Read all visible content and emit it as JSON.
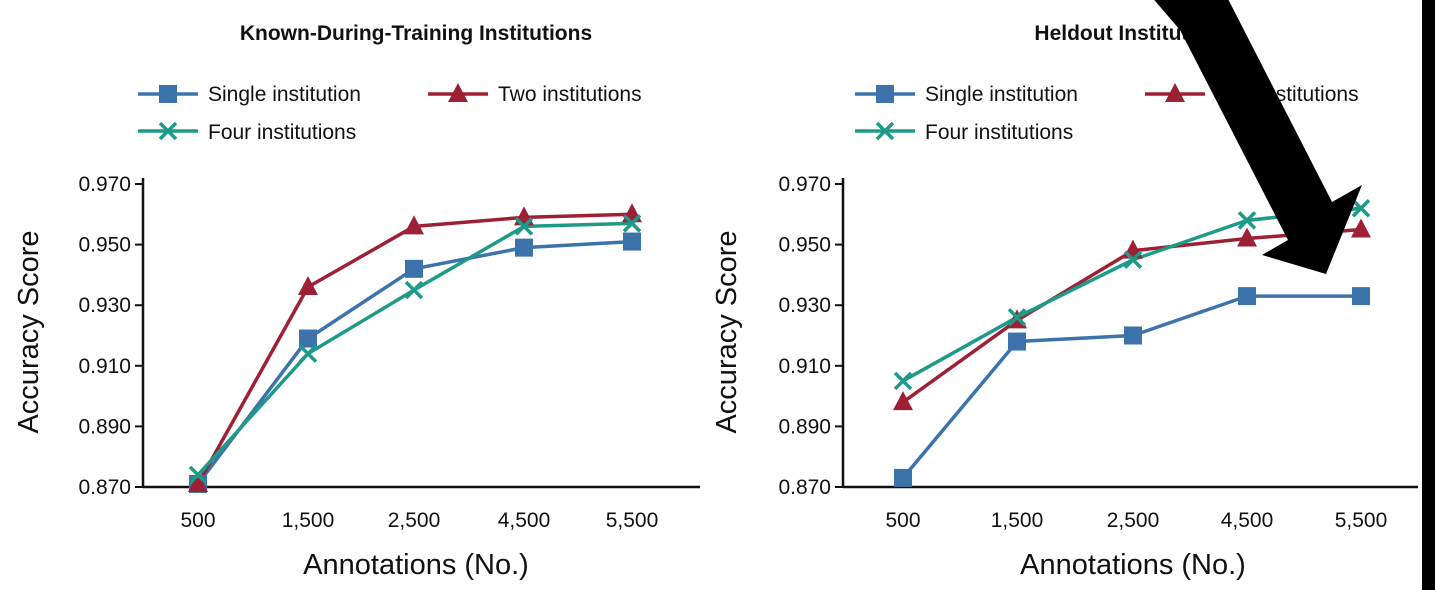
{
  "colors": {
    "single": "#3b73aa",
    "two": "#9e2035",
    "four": "#1e9a88",
    "axis": "#111111",
    "arrow": "#000000"
  },
  "legend": {
    "single_label": "Single institution",
    "two_label": "Two institutions",
    "four_label": "Four institutions"
  },
  "chart_data": [
    {
      "type": "line",
      "title": "Known-During-Training Institutions",
      "xlabel": "Annotations (No.)",
      "ylabel": "Accuracy Score",
      "categories": [
        "500",
        "1,500",
        "2,500",
        "4,500",
        "5,500"
      ],
      "ylim": [
        0.87,
        0.97
      ],
      "yticks": [
        "0.870",
        "0.890",
        "0.910",
        "0.930",
        "0.950",
        "0.970"
      ],
      "legend_position": "top",
      "series": [
        {
          "name": "Single institution",
          "marker": "square",
          "values": [
            0.871,
            0.919,
            0.942,
            0.949,
            0.951
          ]
        },
        {
          "name": "Two institutions",
          "marker": "triangle",
          "values": [
            0.871,
            0.936,
            0.956,
            0.959,
            0.96
          ]
        },
        {
          "name": "Four institutions",
          "marker": "x",
          "values": [
            0.874,
            0.914,
            0.935,
            0.956,
            0.957
          ]
        }
      ]
    },
    {
      "type": "line",
      "title": "Heldout Institutions",
      "xlabel": "Annotations (No.)",
      "ylabel": "Accuracy Score",
      "categories": [
        "500",
        "1,500",
        "2,500",
        "4,500",
        "5,500"
      ],
      "ylim": [
        0.87,
        0.97
      ],
      "yticks": [
        "0.870",
        "0.890",
        "0.910",
        "0.930",
        "0.950",
        "0.970"
      ],
      "legend_position": "top",
      "series": [
        {
          "name": "Single institution",
          "marker": "square",
          "values": [
            0.873,
            0.918,
            0.92,
            0.933,
            0.933
          ]
        },
        {
          "name": "Two institutions",
          "marker": "triangle",
          "values": [
            0.898,
            0.925,
            0.948,
            0.952,
            0.955
          ]
        },
        {
          "name": "Four institutions",
          "marker": "x",
          "values": [
            0.905,
            0.926,
            0.945,
            0.958,
            0.962
          ]
        }
      ]
    }
  ]
}
